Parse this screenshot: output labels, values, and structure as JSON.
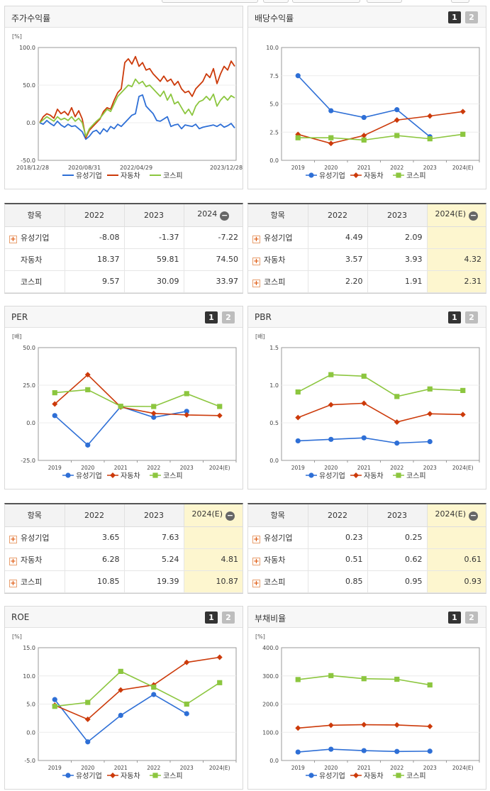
{
  "panels": {
    "stock": {
      "title": "주가수익률"
    },
    "dividend": {
      "title": "배당수익률",
      "btn1": "1",
      "btn2": "2"
    },
    "per": {
      "title": "PER",
      "btn1": "1",
      "btn2": "2"
    },
    "pbr": {
      "title": "PBR",
      "btn1": "1",
      "btn2": "2"
    },
    "roe": {
      "title": "ROE",
      "btn1": "1",
      "btn2": "2"
    },
    "debt": {
      "title": "부채비율",
      "btn1": "1",
      "btn2": "2"
    }
  },
  "colors": {
    "s1": "#2e6fd6",
    "s2": "#cc3a0a",
    "s3": "#8cc63f"
  },
  "legend": [
    "유성기업",
    "자동차",
    "코스피"
  ],
  "chart_data": [
    {
      "id": "stock",
      "type": "line",
      "unit": "[%]",
      "ylim": [
        -50,
        100
      ],
      "yticks": [
        "100.0",
        "50.0",
        "0.0",
        "-50.0"
      ],
      "ytick_values": [
        100,
        50,
        0,
        -50
      ],
      "xticks": [
        "2018/12/28",
        "2020/08/31",
        "2022/04/29",
        "2023/12/28"
      ],
      "series": [
        {
          "name": "유성기업",
          "values": [
            0,
            -2,
            3,
            -1,
            -4,
            2,
            -3,
            -6,
            -2,
            -5,
            -4,
            -8,
            -12,
            -22,
            -18,
            -12,
            -10,
            -15,
            -8,
            -12,
            -5,
            -8,
            -2,
            -5,
            0,
            5,
            10,
            12,
            35,
            37,
            22,
            17,
            12,
            3,
            2,
            5,
            8,
            -5,
            -3,
            -2,
            -8,
            -3,
            -4,
            -5,
            -2,
            -8,
            -6,
            -5,
            -4,
            -3,
            -5,
            -2,
            -6,
            -4,
            -1,
            -7
          ]
        },
        {
          "name": "자동차",
          "values": [
            0,
            8,
            12,
            10,
            6,
            18,
            12,
            15,
            10,
            20,
            8,
            16,
            5,
            -20,
            -10,
            -5,
            0,
            5,
            15,
            20,
            18,
            30,
            40,
            45,
            80,
            85,
            78,
            88,
            75,
            80,
            70,
            72,
            65,
            60,
            55,
            62,
            55,
            58,
            50,
            55,
            45,
            40,
            42,
            35,
            45,
            50,
            55,
            65,
            60,
            72,
            52,
            65,
            75,
            70,
            82,
            75
          ]
        },
        {
          "name": "코스피",
          "values": [
            0,
            4,
            8,
            5,
            2,
            8,
            4,
            6,
            3,
            8,
            2,
            6,
            0,
            -18,
            -8,
            -3,
            2,
            6,
            12,
            18,
            15,
            25,
            35,
            40,
            45,
            50,
            48,
            58,
            52,
            55,
            48,
            50,
            45,
            40,
            35,
            42,
            30,
            38,
            25,
            28,
            20,
            12,
            18,
            10,
            22,
            28,
            30,
            35,
            30,
            38,
            22,
            30,
            35,
            30,
            36,
            33
          ]
        }
      ]
    },
    {
      "id": "dividend",
      "type": "line",
      "unit": "",
      "ylim": [
        0,
        10
      ],
      "yticks": [
        "10.0",
        "7.5",
        "5.0",
        "2.5",
        "0.0"
      ],
      "ytick_values": [
        10,
        7.5,
        5,
        2.5,
        0
      ],
      "categories": [
        "2019",
        "2020",
        "2021",
        "2022",
        "2023",
        "2024(E)"
      ],
      "series": [
        {
          "name": "유성기업",
          "values": [
            7.5,
            4.4,
            3.8,
            4.49,
            2.09,
            null
          ]
        },
        {
          "name": "자동차",
          "values": [
            2.3,
            1.5,
            2.2,
            3.57,
            3.93,
            4.32
          ]
        },
        {
          "name": "코스피",
          "values": [
            2.0,
            2.0,
            1.8,
            2.2,
            1.91,
            2.31
          ]
        }
      ]
    },
    {
      "id": "per",
      "type": "line",
      "unit": "[배]",
      "ylim": [
        -25,
        50
      ],
      "yticks": [
        "50.0",
        "25.0",
        "0.0",
        "-25.0"
      ],
      "ytick_values": [
        50,
        25,
        0,
        -25
      ],
      "categories": [
        "2019",
        "2020",
        "2021",
        "2022",
        "2023",
        "2024(E)"
      ],
      "series": [
        {
          "name": "유성기업",
          "values": [
            4.8,
            -14.8,
            10.8,
            3.65,
            7.63,
            null
          ]
        },
        {
          "name": "자동차",
          "values": [
            12.5,
            32.0,
            10.5,
            6.28,
            5.24,
            4.81
          ]
        },
        {
          "name": "코스피",
          "values": [
            20.0,
            22.0,
            11.0,
            10.85,
            19.39,
            10.87
          ]
        }
      ]
    },
    {
      "id": "pbr",
      "type": "line",
      "unit": "[배]",
      "ylim": [
        0,
        1.5
      ],
      "yticks": [
        "1.5",
        "1.0",
        "0.5",
        "0.0"
      ],
      "ytick_values": [
        1.5,
        1.0,
        0.5,
        0
      ],
      "categories": [
        "2019",
        "2020",
        "2021",
        "2022",
        "2023",
        "2024(E)"
      ],
      "series": [
        {
          "name": "유성기업",
          "values": [
            0.26,
            0.28,
            0.3,
            0.23,
            0.25,
            null
          ]
        },
        {
          "name": "자동차",
          "values": [
            0.57,
            0.74,
            0.76,
            0.51,
            0.62,
            0.61
          ]
        },
        {
          "name": "코스피",
          "values": [
            0.91,
            1.14,
            1.12,
            0.85,
            0.95,
            0.93
          ]
        }
      ]
    },
    {
      "id": "roe",
      "type": "line",
      "unit": "[%]",
      "ylim": [
        -5,
        15
      ],
      "yticks": [
        "15.0",
        "10.0",
        "5.0",
        "0.0",
        "-5.0"
      ],
      "ytick_values": [
        15,
        10,
        5,
        0,
        -5
      ],
      "categories": [
        "2019",
        "2020",
        "2021",
        "2022",
        "2023",
        "2024(E)"
      ],
      "series": [
        {
          "name": "유성기업",
          "values": [
            5.8,
            -1.7,
            3.0,
            6.7,
            3.3,
            null
          ]
        },
        {
          "name": "자동차",
          "values": [
            4.8,
            2.3,
            7.5,
            8.4,
            12.4,
            13.3
          ]
        },
        {
          "name": "코스피",
          "values": [
            4.6,
            5.3,
            10.8,
            8.0,
            5.0,
            8.8
          ]
        }
      ]
    },
    {
      "id": "debt",
      "type": "line",
      "unit": "[%]",
      "ylim": [
        0,
        400
      ],
      "yticks": [
        "400.0",
        "300.0",
        "200.0",
        "100.0",
        "0.0"
      ],
      "ytick_values": [
        400,
        300,
        200,
        100,
        0
      ],
      "categories": [
        "2019",
        "2020",
        "2021",
        "2022",
        "2023",
        "2024(E)"
      ],
      "series": [
        {
          "name": "유성기업",
          "values": [
            30,
            40,
            35,
            32,
            33,
            null
          ]
        },
        {
          "name": "자동차",
          "values": [
            115,
            125,
            127,
            126,
            121,
            null
          ]
        },
        {
          "name": "코스피",
          "values": [
            287,
            301,
            290,
            288,
            268,
            null
          ]
        }
      ]
    }
  ],
  "tables": {
    "stock": {
      "headers": [
        "항목",
        "2022",
        "2023",
        "2024"
      ],
      "rows": [
        {
          "name": "유성기업",
          "values": [
            "-8.08",
            "-1.37",
            "-7.22"
          ]
        },
        {
          "name": "자동차",
          "values": [
            "18.37",
            "59.81",
            "74.50"
          ]
        },
        {
          "name": "코스피",
          "values": [
            "9.57",
            "30.09",
            "33.97"
          ]
        }
      ]
    },
    "dividend": {
      "headers": [
        "항목",
        "2022",
        "2023",
        "2024(E)"
      ],
      "rows": [
        {
          "name": "유성기업",
          "values": [
            "4.49",
            "2.09",
            ""
          ]
        },
        {
          "name": "자동차",
          "values": [
            "3.57",
            "3.93",
            "4.32"
          ]
        },
        {
          "name": "코스피",
          "values": [
            "2.20",
            "1.91",
            "2.31"
          ]
        }
      ]
    },
    "per": {
      "headers": [
        "항목",
        "2022",
        "2023",
        "2024(E)"
      ],
      "rows": [
        {
          "name": "유성기업",
          "values": [
            "3.65",
            "7.63",
            ""
          ]
        },
        {
          "name": "자동차",
          "values": [
            "6.28",
            "5.24",
            "4.81"
          ]
        },
        {
          "name": "코스피",
          "values": [
            "10.85",
            "19.39",
            "10.87"
          ]
        }
      ]
    },
    "pbr": {
      "headers": [
        "항목",
        "2022",
        "2023",
        "2024(E)"
      ],
      "rows": [
        {
          "name": "유성기업",
          "values": [
            "0.23",
            "0.25",
            ""
          ]
        },
        {
          "name": "자동차",
          "values": [
            "0.51",
            "0.62",
            "0.61"
          ]
        },
        {
          "name": "코스피",
          "values": [
            "0.85",
            "0.95",
            "0.93"
          ]
        }
      ]
    }
  }
}
